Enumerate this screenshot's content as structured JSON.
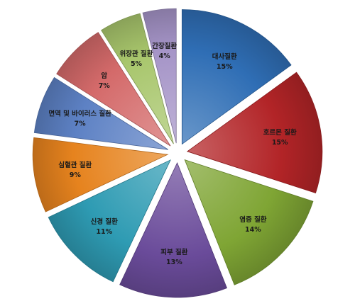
{
  "chart_data": {
    "type": "pie",
    "exploded": true,
    "legend": "none",
    "slices": [
      {
        "label": "대사질환",
        "value_label": "15%",
        "value": 15,
        "color": "#2F6EB5"
      },
      {
        "label": "호르몬 질환",
        "value_label": "15%",
        "value": 15,
        "color": "#B22427"
      },
      {
        "label": "염증 질환",
        "value_label": "14%",
        "value": 14,
        "color": "#7FA534"
      },
      {
        "label": "피부 질환",
        "value_label": "13%",
        "value": 13,
        "color": "#6A4B9A"
      },
      {
        "label": "신경 질환",
        "value_label": "11%",
        "value": 11,
        "color": "#2E9BB3"
      },
      {
        "label": "심혈관 질환",
        "value_label": "9%",
        "value": 9,
        "color": "#E6831E"
      },
      {
        "label": "면역 및 바이러스 질환",
        "value_label": "7%",
        "value": 7,
        "color": "#5D81C4"
      },
      {
        "label": "암",
        "value_label": "7%",
        "value": 7,
        "color": "#D46A6A"
      },
      {
        "label": "위장관 질환",
        "value_label": "5%",
        "value": 5,
        "color": "#A8C66C"
      },
      {
        "label": "간장질환",
        "value_label": "4%",
        "value": 4,
        "color": "#A594C7"
      }
    ]
  }
}
